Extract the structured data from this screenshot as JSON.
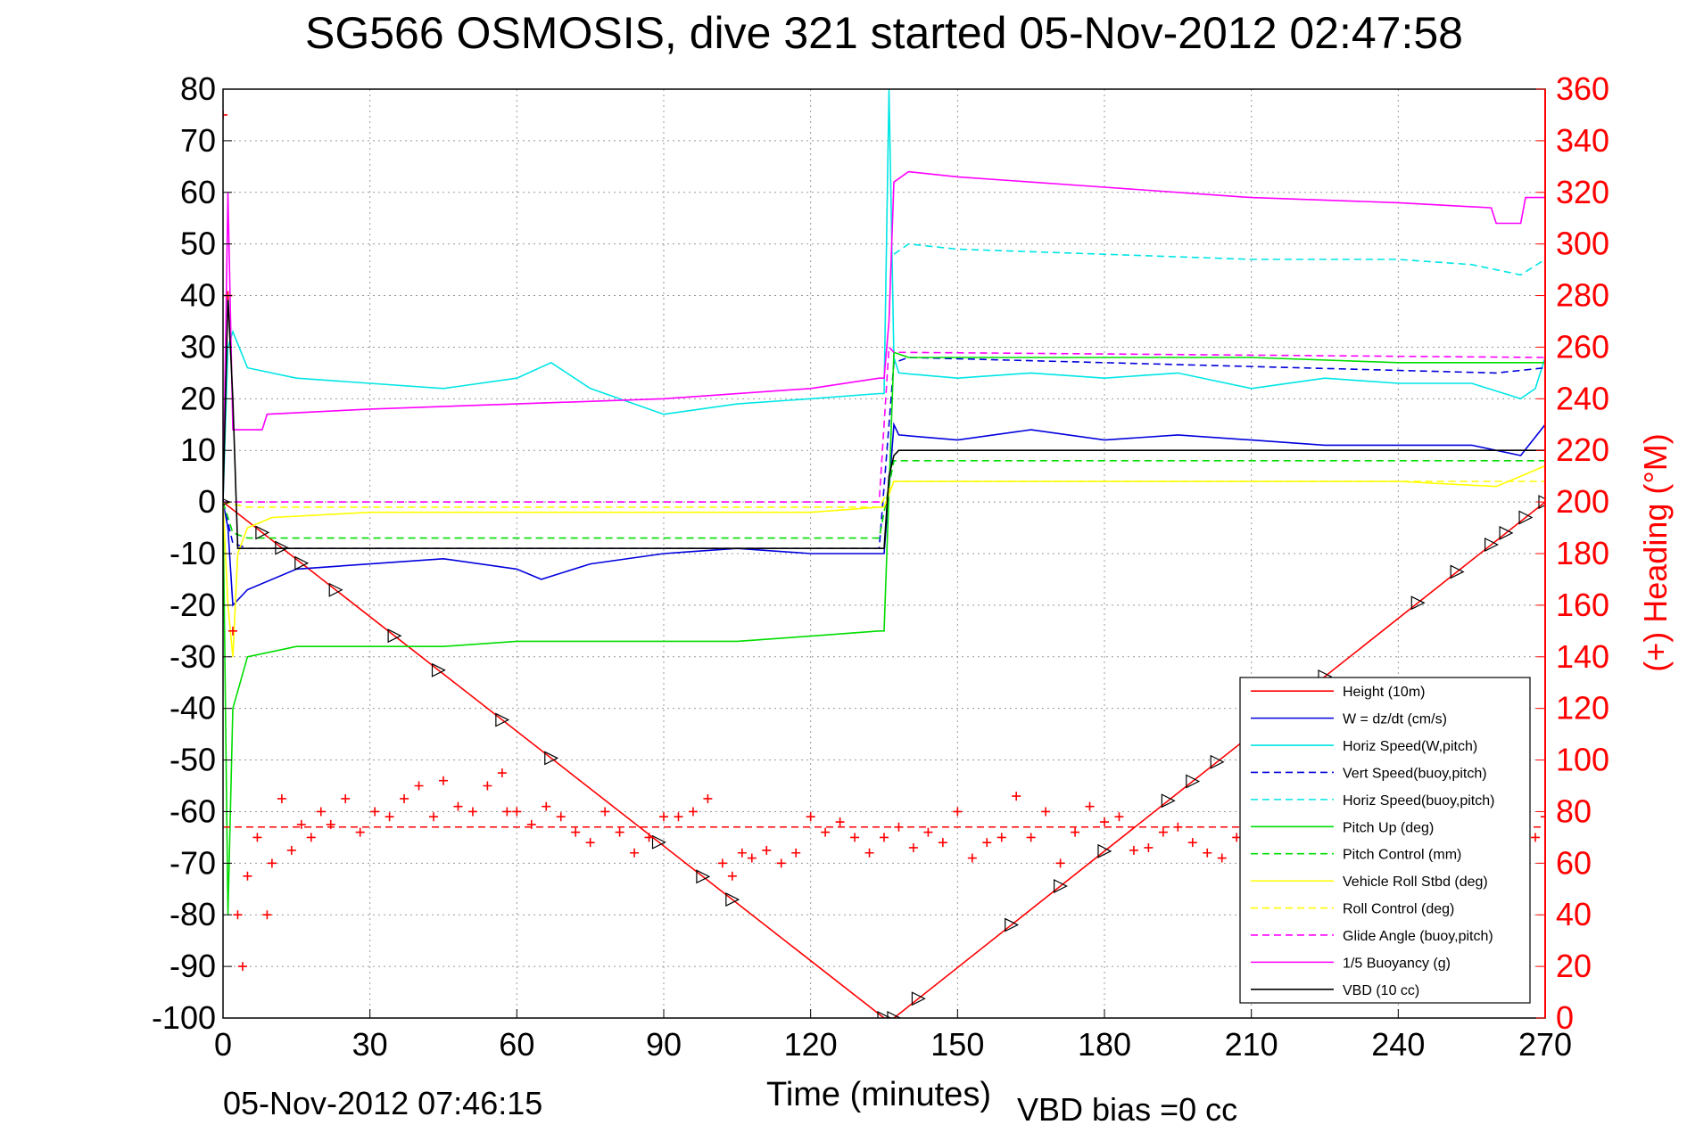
{
  "chart_data": {
    "type": "line",
    "title": "SG566 OSMOSIS, dive 321 started 05-Nov-2012 02:47:58",
    "xlabel": "Time (minutes)",
    "ylabel": "",
    "y2label": "(+) Heading (°M)",
    "footer_left": "05-Nov-2012 07:46:15",
    "footer_right": "VBD bias =0 cc",
    "xlim": [
      0,
      270
    ],
    "ylim": [
      -100,
      80
    ],
    "y2lim": [
      0,
      360
    ],
    "xticks": [
      "0",
      "30",
      "60",
      "90",
      "120",
      "150",
      "180",
      "210",
      "240",
      "270"
    ],
    "yticks": [
      "80",
      "70",
      "60",
      "50",
      "40",
      "30",
      "20",
      "10",
      "0",
      "-10",
      "-20",
      "-30",
      "-40",
      "-50",
      "-60",
      "-70",
      "-80",
      "-90",
      "-100"
    ],
    "y2ticks": [
      "360",
      "340",
      "320",
      "300",
      "280",
      "260",
      "240",
      "220",
      "200",
      "180",
      "160",
      "140",
      "120",
      "100",
      "80",
      "60",
      "40",
      "20",
      "0"
    ],
    "grid": true,
    "legend_position": "lower-right",
    "colors": {
      "height": "#ff0000",
      "w": "#0000dd",
      "horiz_speed": "#00e5e5",
      "pitch": "#00dd00",
      "roll": "#ffff00",
      "glide": "#ff00ff",
      "buoyancy": "#ff00ff",
      "vbd": "#000000",
      "heading": "#ff0000",
      "axis_right": "#ff0000"
    },
    "series": [
      {
        "name": "Height (10m)",
        "style": "solid",
        "color": "#ff0000",
        "x": [
          0,
          135,
          137,
          270
        ],
        "y": [
          0,
          -100,
          -100,
          0
        ]
      },
      {
        "name": "W = dz/dt (cm/s)",
        "style": "solid",
        "color": "#0000dd",
        "x": [
          0,
          1,
          2,
          5,
          15,
          30,
          45,
          60,
          65,
          75,
          90,
          105,
          120,
          134,
          135,
          137,
          138,
          150,
          165,
          180,
          195,
          210,
          225,
          240,
          255,
          265,
          270
        ],
        "y": [
          0,
          -5,
          -20,
          -17,
          -13,
          -12,
          -11,
          -13,
          -15,
          -12,
          -10,
          -9,
          -10,
          -10,
          -10,
          15,
          13,
          12,
          14,
          12,
          13,
          12,
          11,
          11,
          11,
          9,
          15
        ]
      },
      {
        "name": "Horiz Speed(W,pitch)",
        "style": "solid",
        "color": "#00e5e5",
        "x": [
          0,
          1,
          2,
          5,
          15,
          30,
          45,
          60,
          67,
          75,
          90,
          105,
          120,
          134,
          135,
          136,
          137,
          138,
          150,
          165,
          180,
          195,
          210,
          225,
          240,
          255,
          265,
          268,
          270
        ],
        "y": [
          0,
          30,
          33,
          26,
          24,
          23,
          22,
          24,
          27,
          22,
          17,
          19,
          20,
          21,
          21,
          80,
          28,
          25,
          24,
          25,
          24,
          25,
          22,
          24,
          23,
          23,
          20,
          22,
          28
        ]
      },
      {
        "name": "Vert Speed(buoy,pitch)",
        "style": "dashed",
        "color": "#0000dd",
        "x": [
          0,
          2,
          5,
          60,
          120,
          134,
          137,
          140,
          180,
          220,
          260,
          270
        ],
        "y": [
          0,
          -8,
          -9,
          -9,
          -9,
          -9,
          27,
          28,
          27,
          26,
          25,
          26
        ]
      },
      {
        "name": "Horiz Speed(buoy,pitch)",
        "style": "dashed",
        "color": "#00e5e5",
        "x": [
          137,
          140,
          150,
          180,
          210,
          240,
          255,
          265,
          270
        ],
        "y": [
          48,
          50,
          49,
          48,
          47,
          47,
          46,
          44,
          47
        ]
      },
      {
        "name": "Pitch Up (deg)",
        "style": "solid",
        "color": "#00dd00",
        "x": [
          0,
          1,
          2,
          5,
          15,
          30,
          45,
          60,
          75,
          90,
          105,
          120,
          134,
          135,
          137,
          140,
          150,
          180,
          210,
          240,
          260,
          270
        ],
        "y": [
          0,
          -80,
          -40,
          -30,
          -28,
          -28,
          -28,
          -27,
          -27,
          -27,
          -27,
          -26,
          -25,
          -25,
          29,
          28,
          28,
          28,
          28,
          27,
          27,
          27
        ]
      },
      {
        "name": "Pitch Control (mm)",
        "style": "dashed",
        "color": "#00dd00",
        "x": [
          0,
          2,
          5,
          134,
          137,
          140,
          270
        ],
        "y": [
          0,
          -6,
          -7,
          -7,
          8,
          8,
          8
        ]
      },
      {
        "name": "Vehicle Roll Stbd (deg)",
        "style": "solid",
        "color": "#ffff00",
        "x": [
          0,
          1,
          2,
          3,
          5,
          10,
          30,
          60,
          90,
          120,
          134,
          135,
          137,
          140,
          180,
          210,
          240,
          260,
          265,
          270
        ],
        "y": [
          0,
          -20,
          -30,
          -10,
          -5,
          -3,
          -2,
          -2,
          -2,
          -2,
          -1,
          -1,
          4,
          4,
          4,
          4,
          4,
          3,
          5,
          7
        ]
      },
      {
        "name": "Roll Control (deg)",
        "style": "dashed",
        "color": "#ffff00",
        "x": [
          0,
          5,
          134,
          137,
          270
        ],
        "y": [
          0,
          -1,
          -1,
          4,
          4
        ]
      },
      {
        "name": "Glide Angle (buoy,pitch)",
        "style": "dashed",
        "color": "#ff00ff",
        "x": [
          0,
          2,
          134,
          136,
          137,
          270
        ],
        "y": [
          0,
          0,
          0,
          30,
          29,
          28
        ]
      },
      {
        "name": "1/5 Buoyancy (g)",
        "style": "solid",
        "color": "#ff00ff",
        "x": [
          0,
          1,
          2,
          8,
          9,
          30,
          60,
          90,
          120,
          134,
          135,
          136,
          137,
          140,
          150,
          180,
          210,
          240,
          259,
          260,
          265,
          266,
          270
        ],
        "y": [
          0,
          60,
          14,
          14,
          17,
          18,
          19,
          20,
          22,
          24,
          24,
          35,
          62,
          64,
          63,
          61,
          59,
          58,
          57,
          54,
          54,
          59,
          59
        ]
      },
      {
        "name": "VBD (10 cc)",
        "style": "solid",
        "color": "#000000",
        "x": [
          0,
          1,
          2,
          3,
          5,
          134,
          135,
          136,
          137,
          138,
          270
        ],
        "y": [
          0,
          40,
          20,
          -9,
          -9,
          -9,
          -9,
          5,
          9,
          10,
          10
        ]
      }
    ],
    "heading": {
      "name": "Heading",
      "axis": "right",
      "marker": "+",
      "color": "#ff0000",
      "target_heading": 74,
      "x": [
        0,
        1,
        2,
        3,
        4,
        5,
        7,
        9,
        10,
        12,
        14,
        16,
        18,
        20,
        22,
        25,
        28,
        31,
        34,
        37,
        40,
        43,
        45,
        48,
        51,
        54,
        57,
        58,
        60,
        63,
        66,
        69,
        72,
        75,
        78,
        81,
        84,
        87,
        90,
        93,
        96,
        99,
        102,
        104,
        106,
        108,
        111,
        114,
        117,
        120,
        123,
        126,
        129,
        132,
        135,
        138,
        141,
        144,
        147,
        150,
        153,
        156,
        159,
        162,
        165,
        168,
        171,
        174,
        177,
        180,
        183,
        186,
        189,
        192,
        195,
        198,
        201,
        204,
        207,
        210,
        215,
        220,
        225,
        230,
        235,
        240,
        245,
        250,
        255,
        260,
        265,
        268,
        270
      ],
      "y": [
        350,
        280,
        150,
        40,
        20,
        55,
        70,
        40,
        60,
        85,
        65,
        75,
        70,
        80,
        75,
        85,
        72,
        80,
        78,
        85,
        90,
        78,
        92,
        82,
        80,
        90,
        95,
        80,
        80,
        75,
        82,
        78,
        72,
        68,
        80,
        72,
        64,
        70,
        78,
        78,
        80,
        85,
        60,
        55,
        64,
        62,
        65,
        60,
        64,
        78,
        72,
        76,
        70,
        64,
        70,
        74,
        66,
        72,
        68,
        80,
        62,
        68,
        70,
        86,
        70,
        80,
        60,
        72,
        82,
        76,
        78,
        65,
        66,
        72,
        74,
        68,
        64,
        62,
        70,
        75,
        80,
        78,
        82,
        76,
        74,
        80,
        78,
        76,
        72,
        80,
        84,
        70,
        78
      ]
    }
  }
}
